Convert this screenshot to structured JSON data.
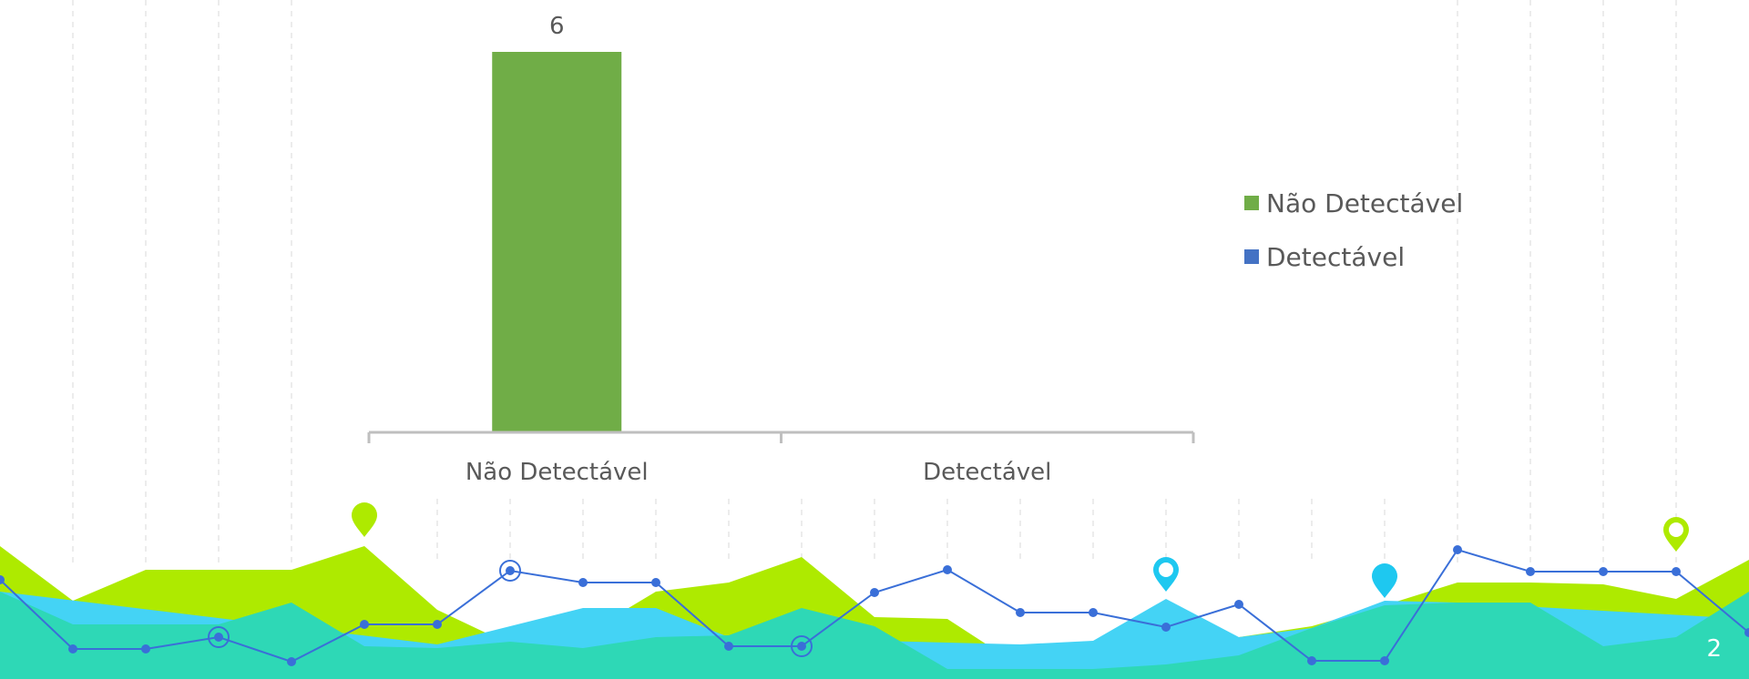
{
  "slide": {
    "number": "2"
  },
  "chart_data": {
    "type": "bar",
    "categories": [
      "Não Detectável",
      "Detectável"
    ],
    "series": [
      {
        "name": "Não Detectável",
        "values": [
          6,
          null
        ],
        "color": "#70AD47"
      },
      {
        "name": "Detectável",
        "values": [
          null,
          0
        ],
        "color": "#4472C4"
      }
    ],
    "data_labels": [
      "6",
      ""
    ],
    "ylim": [
      0,
      6
    ],
    "legend": {
      "position": "right",
      "entries": [
        "Não Detectável",
        "Detectável"
      ]
    },
    "grid": false
  },
  "decoration": {
    "lime_color": "#aeea00",
    "teal_color": "#2ed8b6",
    "sky_color": "#44d3f5",
    "line_color": "#3a6fd8",
    "pin_colors": [
      "#aeea00",
      "#1ec8f0"
    ]
  }
}
